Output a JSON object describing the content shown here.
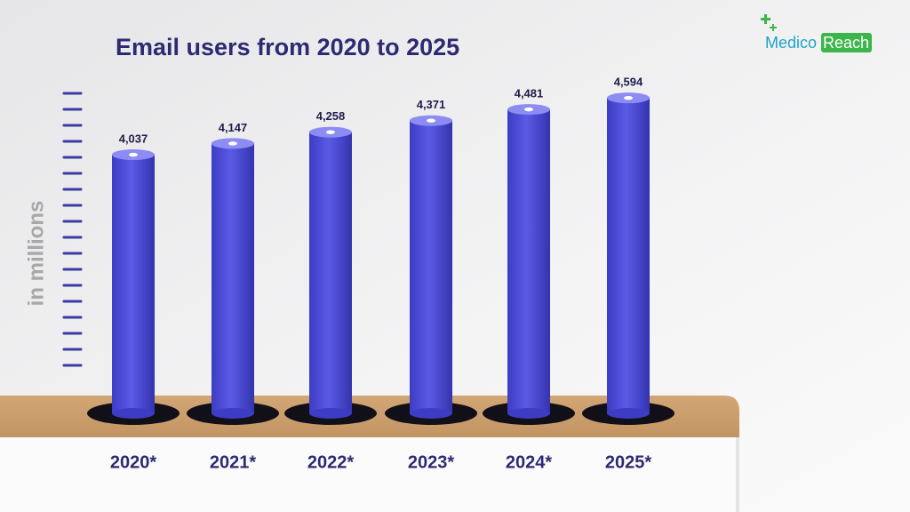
{
  "chart_data": {
    "type": "bar",
    "title": "Email users from 2020 to 2025",
    "y_label": "in millions",
    "categories": [
      "2020*",
      "2021*",
      "2022*",
      "2023*",
      "2024*",
      "2025*"
    ],
    "values": [
      4037,
      4147,
      4258,
      4371,
      4481,
      4594
    ],
    "value_labels": [
      "4,037",
      "4,147",
      "4,258",
      "4,371",
      "4,481",
      "4,594"
    ],
    "color": "#4a4ad6",
    "ylim": [
      1500,
      4700
    ]
  },
  "logo": {
    "left": "Medico",
    "right": "Reach"
  }
}
